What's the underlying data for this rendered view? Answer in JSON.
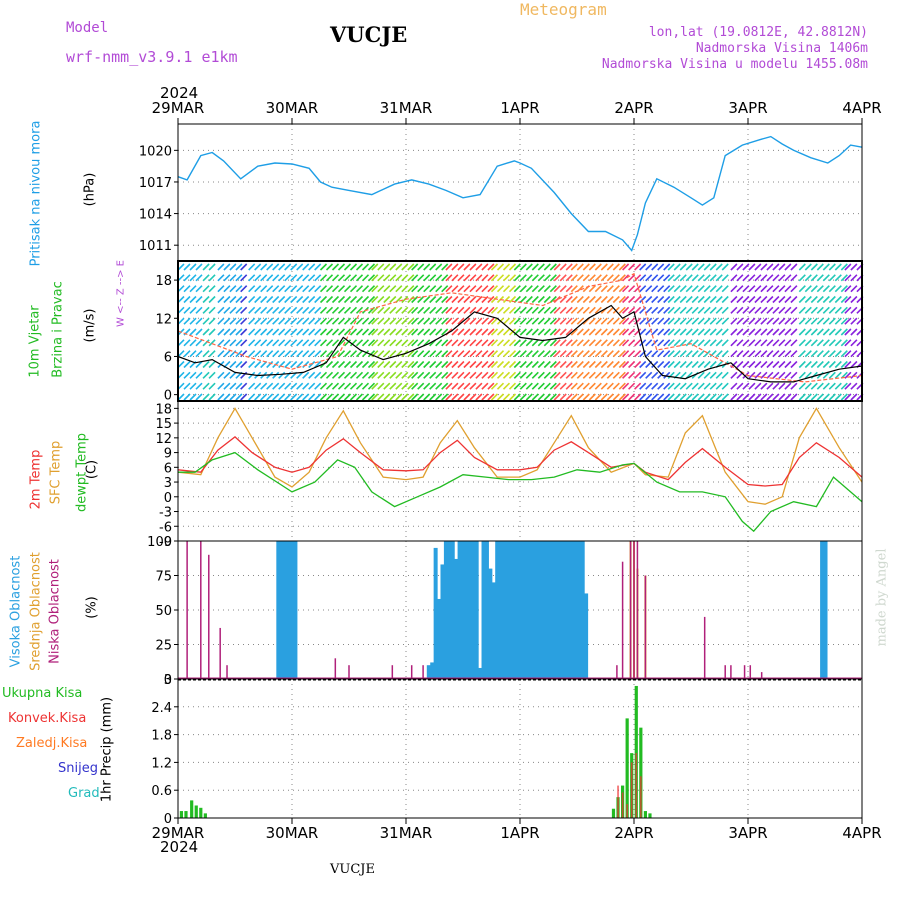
{
  "header": {
    "model_label": "Model",
    "model_name": "wrf-nmm_v3.9.1  e1km",
    "station": "VUCJE",
    "meteogram": "Meteogram",
    "lonlat": "lon,lat (19.0812E, 42.8812N)",
    "elevation": "Nadmorska Visina 1406m",
    "model_elevation": "Nadmorska Visina u modelu 1455.08m",
    "footer_station": "VUCJE",
    "credit": "made by Angel"
  },
  "colors": {
    "pressure": "#1e9ee6",
    "wind_label": "#22bb22",
    "temp2m": "#ee3333",
    "sfc_temp": "#e0a030",
    "dewpt": "#22bb22",
    "high_cloud": "#2aa0e0",
    "mid_cloud": "#e0a030",
    "low_cloud": "#b0207a",
    "total_precip": "#22bb22",
    "conv_precip": "#ee3333",
    "frz_precip": "#ff7a22",
    "snow": "#3333cc",
    "graupel": "#22bbbb",
    "header_purple": "#b24bd6",
    "meteogram_orange": "#f0b860"
  },
  "time_axis": {
    "year": "2024",
    "labels": [
      "29MAR",
      "30MAR",
      "31MAR",
      "1APR",
      "2APR",
      "3APR",
      "4APR"
    ]
  },
  "chart_data": [
    {
      "type": "line",
      "title": "",
      "ylabel_lines": [
        "Pritisak na nivou mora",
        "(hPa)"
      ],
      "yticks": [
        1011,
        1014,
        1017,
        1020
      ],
      "ylim": [
        1009.5,
        1022.5
      ],
      "x_unit": "days from 29MAR 00:00",
      "series": [
        {
          "name": "Pritisak na nivou mora",
          "x": [
            0,
            0.08,
            0.2,
            0.3,
            0.4,
            0.55,
            0.7,
            0.85,
            1.0,
            1.15,
            1.25,
            1.35,
            1.5,
            1.7,
            1.9,
            2.05,
            2.2,
            2.35,
            2.5,
            2.65,
            2.8,
            2.95,
            3.0,
            3.1,
            3.3,
            3.45,
            3.6,
            3.75,
            3.9,
            3.98,
            4.03,
            4.1,
            4.2,
            4.35,
            4.5,
            4.6,
            4.7,
            4.8,
            4.95,
            5.1,
            5.2,
            5.3,
            5.4,
            5.55,
            5.7,
            5.8,
            5.9,
            6.0
          ],
          "values": [
            1017.5,
            1017.2,
            1019.5,
            1019.8,
            1019.0,
            1017.3,
            1018.5,
            1018.8,
            1018.7,
            1018.3,
            1017.0,
            1016.5,
            1016.2,
            1015.8,
            1016.8,
            1017.2,
            1016.8,
            1016.2,
            1015.5,
            1015.8,
            1018.5,
            1019.0,
            1018.8,
            1018.3,
            1016.0,
            1014.0,
            1012.3,
            1012.3,
            1011.5,
            1010.5,
            1012.0,
            1015.0,
            1017.3,
            1016.5,
            1015.5,
            1014.8,
            1015.5,
            1019.5,
            1020.5,
            1021.0,
            1021.3,
            1020.6,
            1020.0,
            1019.3,
            1018.8,
            1019.5,
            1020.5,
            1020.3
          ]
        }
      ]
    },
    {
      "type": "line",
      "title": "",
      "ylabel_lines": [
        "10m Vjetar",
        "Brzina i Pravac",
        "(m/s)"
      ],
      "legend_text": "W <-- Z --> E",
      "yticks": [
        0,
        6,
        12,
        18
      ],
      "ylim": [
        -1,
        21
      ],
      "series": [
        {
          "name": "Brzina",
          "x": [
            0,
            0.15,
            0.3,
            0.5,
            0.7,
            0.9,
            1.1,
            1.3,
            1.45,
            1.6,
            1.8,
            2.0,
            2.2,
            2.4,
            2.6,
            2.8,
            3.0,
            3.2,
            3.4,
            3.6,
            3.8,
            3.9,
            4.0,
            4.1,
            4.25,
            4.45,
            4.65,
            4.85,
            5.0,
            5.2,
            5.4,
            5.6,
            5.8,
            6.0
          ],
          "values": [
            6,
            5,
            5.5,
            3.5,
            3,
            3.2,
            3.5,
            5,
            9,
            7,
            5.5,
            6.5,
            8,
            10,
            13,
            12,
            9,
            8.5,
            9,
            12,
            14,
            12,
            13,
            6,
            3,
            2.5,
            4,
            5,
            2.5,
            2,
            2,
            3,
            4,
            4.5
          ]
        },
        {
          "name": "Udari",
          "x": [
            0,
            0.3,
            0.6,
            1.0,
            1.4,
            1.6,
            2.0,
            2.4,
            2.8,
            3.2,
            3.6,
            3.9,
            4.0,
            4.2,
            4.5,
            5.0,
            5.5,
            6.0
          ],
          "values": [
            10,
            8,
            6,
            4,
            6,
            13,
            15,
            16,
            15,
            14,
            17,
            18,
            19,
            7,
            8,
            3,
            2,
            3
          ]
        }
      ]
    },
    {
      "type": "line",
      "title": "",
      "ylabel_lines": [
        "2m Temp",
        "SFC Temp",
        "dewpt Temp",
        "(C)"
      ],
      "yticks": [
        -9,
        -6,
        -3,
        0,
        3,
        6,
        9,
        12,
        15,
        18
      ],
      "ylim": [
        -9,
        19.5
      ],
      "series": [
        {
          "name": "2m Temp",
          "x": [
            0,
            0.2,
            0.35,
            0.5,
            0.65,
            0.85,
            1.0,
            1.15,
            1.3,
            1.45,
            1.6,
            1.8,
            2.0,
            2.15,
            2.3,
            2.45,
            2.6,
            2.8,
            3.0,
            3.15,
            3.3,
            3.45,
            3.6,
            3.8,
            4.0,
            4.1,
            4.3,
            4.45,
            4.6,
            4.8,
            5.0,
            5.15,
            5.3,
            5.45,
            5.6,
            5.8,
            6.0
          ],
          "values": [
            5.5,
            5,
            9.5,
            12.2,
            9,
            6,
            5,
            6,
            9.5,
            11.8,
            9,
            5.5,
            5.3,
            5.5,
            9,
            11.5,
            8,
            5.5,
            5.5,
            6,
            9.5,
            11.2,
            9,
            6,
            6.8,
            5,
            3.5,
            7,
            9.8,
            6,
            2.5,
            2.2,
            2.5,
            8,
            11,
            8,
            4
          ]
        },
        {
          "name": "SFC Temp",
          "x": [
            0,
            0.2,
            0.35,
            0.5,
            0.65,
            0.85,
            1.0,
            1.15,
            1.3,
            1.45,
            1.6,
            1.8,
            2.0,
            2.15,
            2.3,
            2.45,
            2.6,
            2.8,
            3.0,
            3.15,
            3.3,
            3.45,
            3.6,
            3.8,
            4.0,
            4.1,
            4.3,
            4.45,
            4.6,
            4.8,
            5.0,
            5.15,
            5.3,
            5.45,
            5.6,
            5.8,
            6.0
          ],
          "values": [
            5,
            4.5,
            12,
            18,
            12,
            4,
            2,
            5,
            12,
            17.5,
            11,
            4,
            3.5,
            4,
            11,
            15.5,
            10,
            4,
            4,
            5.5,
            11,
            16.5,
            10,
            5,
            6.8,
            4.5,
            4,
            13,
            16.5,
            5,
            -1,
            -1.5,
            0,
            12,
            18,
            10,
            3
          ]
        },
        {
          "name": "dewpt Temp",
          "x": [
            0,
            0.15,
            0.3,
            0.5,
            0.7,
            0.9,
            1.0,
            1.2,
            1.4,
            1.55,
            1.7,
            1.9,
            2.1,
            2.3,
            2.5,
            2.7,
            2.9,
            3.1,
            3.3,
            3.5,
            3.7,
            3.9,
            4.0,
            4.2,
            4.4,
            4.6,
            4.8,
            4.95,
            5.05,
            5.2,
            5.4,
            5.6,
            5.75,
            5.9,
            6.0
          ],
          "values": [
            5,
            5,
            7.5,
            9,
            5.5,
            2.5,
            1,
            3,
            7.5,
            6,
            1,
            -2,
            0,
            2,
            4.5,
            4,
            3.5,
            3.5,
            4,
            5.5,
            5,
            6.5,
            6.8,
            3,
            1,
            1,
            0,
            -5,
            -7,
            -3,
            -1,
            -2,
            4,
            1,
            -1
          ]
        }
      ]
    },
    {
      "type": "bar",
      "title": "",
      "ylabel_lines": [
        "Visoka Oblacnost",
        "Srednja Oblacnost",
        "Niska Oblacnost",
        "(%)"
      ],
      "yticks": [
        0,
        25,
        50,
        75,
        100
      ],
      "ylim": [
        0,
        100
      ],
      "series": [
        {
          "name": "Visoka Oblacnost",
          "x": [
            0.88,
            0.91,
            0.94,
            0.97,
            1.0,
            1.03,
            2.2,
            2.23,
            2.26,
            2.29,
            2.32,
            2.35,
            2.38,
            2.41,
            2.44,
            2.47,
            2.5,
            2.53,
            2.56,
            2.59,
            2.62,
            2.65,
            2.68,
            2.71,
            2.74,
            2.77,
            2.8,
            2.83,
            2.86,
            2.89,
            2.92,
            2.95,
            2.98,
            3.01,
            3.04,
            3.07,
            3.1,
            3.13,
            3.16,
            3.19,
            3.22,
            3.25,
            3.28,
            3.31,
            3.34,
            3.37,
            3.4,
            3.43,
            3.46,
            3.49,
            3.52,
            3.55,
            3.58,
            5.65,
            5.68
          ],
          "values": [
            100,
            100,
            100,
            100,
            100,
            100,
            10,
            12,
            95,
            58,
            83,
            100,
            100,
            100,
            87,
            100,
            100,
            100,
            100,
            100,
            100,
            8,
            100,
            100,
            80,
            70,
            100,
            100,
            100,
            100,
            100,
            100,
            100,
            100,
            100,
            100,
            100,
            100,
            100,
            100,
            100,
            100,
            100,
            100,
            100,
            100,
            100,
            100,
            100,
            100,
            100,
            100,
            62,
            100,
            100
          ]
        },
        {
          "name": "Srednja Oblacnost",
          "x": [
            3.97,
            4.0,
            4.03,
            4.1
          ],
          "values": [
            100,
            100,
            80,
            75
          ]
        },
        {
          "name": "Niska Oblacnost",
          "x": [
            0.08,
            0.2,
            0.27,
            0.37,
            0.43,
            1.38,
            1.5,
            1.88,
            2.05,
            2.15,
            3.85,
            3.9,
            3.97,
            4.0,
            4.03,
            4.1,
            4.62,
            4.8,
            4.85,
            4.97,
            5.02,
            5.12
          ],
          "values": [
            100,
            100,
            90,
            37,
            10,
            15,
            10,
            10,
            10,
            10,
            10,
            85,
            100,
            100,
            100,
            75,
            45,
            10,
            10,
            10,
            10,
            5
          ]
        }
      ]
    },
    {
      "type": "bar",
      "title": "",
      "ylabel_lines": [
        "Ukupna Kisa",
        "Konvek.Kisa",
        "Zaledj.Kisa",
        "Snijeg",
        "Grad",
        "1hr Precip (mm)"
      ],
      "yticks": [
        0,
        0.6,
        1.2,
        1.8,
        2.4,
        3
      ],
      "ylim": [
        0,
        3
      ],
      "series": [
        {
          "name": "Ukupna Kisa",
          "x": [
            0.03,
            0.07,
            0.12,
            0.16,
            0.2,
            0.24
          ],
          "values": [
            0.15,
            0.15,
            0.38,
            0.27,
            0.22,
            0.1
          ]
        },
        {
          "name": "Ukupna Kisa",
          "x": [
            3.82,
            3.86,
            3.9,
            3.94,
            3.98,
            4.02,
            4.06,
            4.1,
            4.14
          ],
          "values": [
            0.2,
            0.45,
            0.7,
            2.15,
            1.4,
            2.85,
            1.95,
            0.15,
            0.1
          ]
        },
        {
          "name": "Konvek.Kisa",
          "x": [
            3.86,
            3.9,
            3.94,
            3.98,
            4.02,
            4.06
          ],
          "values": [
            0.7,
            0.55,
            0.3,
            1.2,
            1.4,
            0.9
          ]
        }
      ]
    }
  ]
}
